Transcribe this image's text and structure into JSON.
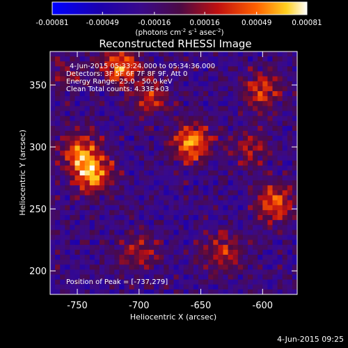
{
  "chart_data": {
    "type": "heatmap",
    "title": "Reconstructed RHESSI Image",
    "xlabel": "Heliocentric X (arcsec)",
    "ylabel": "Heliocentric Y (arcsec)",
    "xlim": [
      -772,
      -572
    ],
    "ylim": [
      181,
      377
    ],
    "x_ticks": [
      -750,
      -700,
      -650,
      -600
    ],
    "y_ticks": [
      200,
      250,
      300,
      350
    ],
    "x_tick_labels": [
      "-750",
      "-700",
      "-650",
      "-600"
    ],
    "y_tick_labels": [
      "200",
      "250",
      "300",
      "350"
    ],
    "colorbar": {
      "min": -0.00081,
      "max": 0.00081,
      "ticks": [
        -0.00081,
        -0.00049,
        -0.00016,
        0.00016,
        0.00049,
        0.00081
      ],
      "tick_labels": [
        "-0.00081",
        "-0.00049",
        "-0.00016",
        "0.00016",
        "0.00049",
        "0.00081"
      ],
      "unit_label": "(photons cm",
      "unit_sup1": "-2",
      "unit_mid": " s",
      "unit_sup2": "-1",
      "unit_tail": " asec",
      "unit_sup3": "-2",
      "unit_close": ")"
    },
    "annotations": [
      "4-Jun-2015 05:33:24.000 to 05:34:36.000",
      "Detectors: 3F 5F 6F 7F 8F 9F, Att 0",
      "Energy Range: 25.0 - 50.0 keV",
      "Clean    Total counts: 4.33E+03"
    ],
    "peak_label": "Position of Peak = [-737,279]",
    "sources": [
      {
        "x": -737,
        "y": 279,
        "value": 0.00081
      },
      {
        "x": -657,
        "y": 303,
        "value": 0.00078
      },
      {
        "x": -715,
        "y": 365,
        "value": 0.00072
      },
      {
        "x": -748,
        "y": 296,
        "value": 0.0006
      },
      {
        "x": -590,
        "y": 255,
        "value": 0.00062
      },
      {
        "x": -600,
        "y": 345,
        "value": 0.00055
      },
      {
        "x": -690,
        "y": 340,
        "value": 0.00045
      },
      {
        "x": -632,
        "y": 215,
        "value": 0.00048
      },
      {
        "x": -700,
        "y": 215,
        "value": 0.0004
      },
      {
        "x": -760,
        "y": 360,
        "value": 0.0003
      },
      {
        "x": -610,
        "y": 300,
        "value": 0.00035
      }
    ]
  },
  "footer_date": "4-Jun-2015 09:25"
}
